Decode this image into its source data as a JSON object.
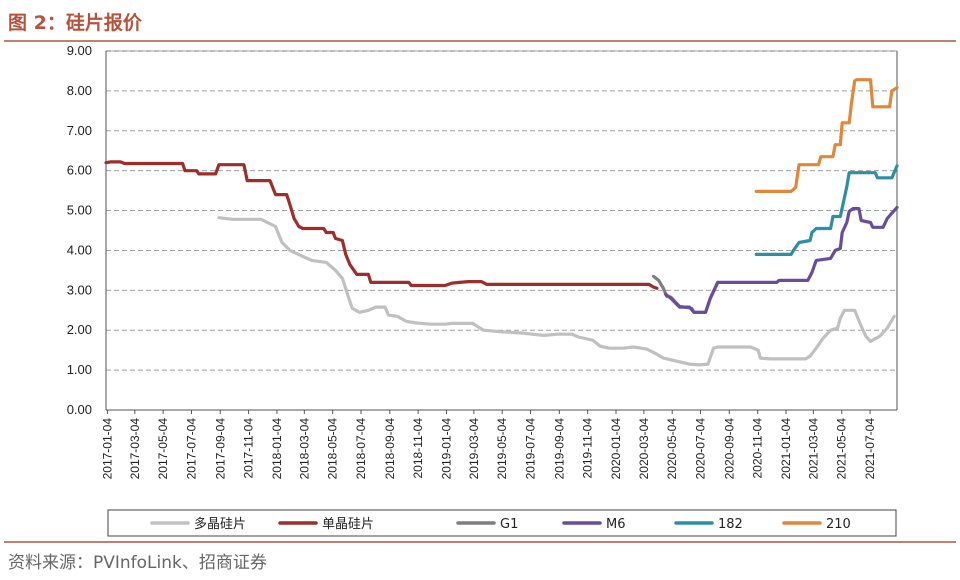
{
  "figure": {
    "title": "图 2：硅片报价",
    "source": "资料来源：PVInfoLink、招商证券"
  },
  "chart_data": {
    "type": "line",
    "title": "",
    "xlabel": "",
    "ylabel": "",
    "ylim": [
      0,
      9
    ],
    "yticks": [
      "0.00",
      "1.00",
      "2.00",
      "3.00",
      "4.00",
      "5.00",
      "6.00",
      "7.00",
      "8.00",
      "9.00"
    ],
    "xlim": [
      "2017-01-01",
      "2021-08-31"
    ],
    "xticks": [
      "2017-01-04",
      "2017-03-04",
      "2017-05-04",
      "2017-07-04",
      "2017-09-04",
      "2017-11-04",
      "2018-01-04",
      "2018-03-04",
      "2018-05-04",
      "2018-07-04",
      "2018-09-04",
      "2018-11-04",
      "2019-01-04",
      "2019-03-04",
      "2019-05-04",
      "2019-07-04",
      "2019-09-04",
      "2019-11-04",
      "2020-01-04",
      "2020-03-04",
      "2020-05-04",
      "2020-07-04",
      "2020-09-04",
      "2020-11-04",
      "2021-01-04",
      "2021-03-04",
      "2021-05-04",
      "2021-07-04"
    ],
    "grid": "horizontal dashed",
    "legend": "bottom",
    "series": [
      {
        "name": "多晶硅片",
        "color": "#c0c0c0",
        "points": [
          [
            "2017-09-01",
            4.82
          ],
          [
            "2017-10-01",
            4.78
          ],
          [
            "2017-12-01",
            4.78
          ],
          [
            "2018-01-01",
            4.6
          ],
          [
            "2018-01-15",
            4.2
          ],
          [
            "2018-02-01",
            4.0
          ],
          [
            "2018-03-01",
            3.85
          ],
          [
            "2018-03-20",
            3.75
          ],
          [
            "2018-04-20",
            3.7
          ],
          [
            "2018-05-10",
            3.5
          ],
          [
            "2018-05-25",
            3.3
          ],
          [
            "2018-06-05",
            2.9
          ],
          [
            "2018-06-15",
            2.55
          ],
          [
            "2018-07-01",
            2.45
          ],
          [
            "2018-07-20",
            2.5
          ],
          [
            "2018-08-05",
            2.58
          ],
          [
            "2018-08-25",
            2.58
          ],
          [
            "2018-09-01",
            2.38
          ],
          [
            "2018-09-20",
            2.35
          ],
          [
            "2018-10-10",
            2.22
          ],
          [
            "2018-11-01",
            2.18
          ],
          [
            "2018-12-01",
            2.15
          ],
          [
            "2019-01-01",
            2.15
          ],
          [
            "2019-01-15",
            2.17
          ],
          [
            "2019-03-01",
            2.17
          ],
          [
            "2019-03-25",
            2.0
          ],
          [
            "2019-05-01",
            1.96
          ],
          [
            "2019-06-15",
            1.93
          ],
          [
            "2019-08-01",
            1.87
          ],
          [
            "2019-09-01",
            1.9
          ],
          [
            "2019-10-01",
            1.9
          ],
          [
            "2019-10-15",
            1.83
          ],
          [
            "2019-11-15",
            1.75
          ],
          [
            "2019-12-01",
            1.6
          ],
          [
            "2019-12-20",
            1.55
          ],
          [
            "2020-01-20",
            1.55
          ],
          [
            "2020-02-10",
            1.58
          ],
          [
            "2020-03-10",
            1.53
          ],
          [
            "2020-04-01",
            1.4
          ],
          [
            "2020-04-15",
            1.3
          ],
          [
            "2020-05-15",
            1.22
          ],
          [
            "2020-06-10",
            1.15
          ],
          [
            "2020-07-01",
            1.13
          ],
          [
            "2020-07-20",
            1.15
          ],
          [
            "2020-08-01",
            1.55
          ],
          [
            "2020-08-10",
            1.58
          ],
          [
            "2020-10-20",
            1.58
          ],
          [
            "2020-11-05",
            1.5
          ],
          [
            "2020-11-10",
            1.3
          ],
          [
            "2020-12-01",
            1.28
          ],
          [
            "2021-02-15",
            1.28
          ],
          [
            "2021-02-25",
            1.35
          ],
          [
            "2021-03-10",
            1.55
          ],
          [
            "2021-03-25",
            1.8
          ],
          [
            "2021-04-10",
            2.0
          ],
          [
            "2021-04-25",
            2.05
          ],
          [
            "2021-05-01",
            2.3
          ],
          [
            "2021-05-10",
            2.5
          ],
          [
            "2021-06-01",
            2.5
          ],
          [
            "2021-06-15",
            2.1
          ],
          [
            "2021-06-25",
            1.85
          ],
          [
            "2021-07-05",
            1.72
          ],
          [
            "2021-07-25",
            1.85
          ],
          [
            "2021-08-10",
            2.05
          ],
          [
            "2021-08-25",
            2.35
          ]
        ]
      },
      {
        "name": "单晶硅片",
        "color": "#9c2e2b",
        "points": [
          [
            "2017-01-01",
            6.2
          ],
          [
            "2017-01-10",
            6.22
          ],
          [
            "2017-02-01",
            6.22
          ],
          [
            "2017-02-10",
            6.18
          ],
          [
            "2017-06-15",
            6.18
          ],
          [
            "2017-06-20",
            6.0
          ],
          [
            "2017-07-15",
            6.0
          ],
          [
            "2017-07-20",
            5.92
          ],
          [
            "2017-08-25",
            5.92
          ],
          [
            "2017-09-01",
            6.15
          ],
          [
            "2017-10-25",
            6.15
          ],
          [
            "2017-11-01",
            5.75
          ],
          [
            "2017-12-20",
            5.75
          ],
          [
            "2018-01-01",
            5.4
          ],
          [
            "2018-01-25",
            5.4
          ],
          [
            "2018-02-01",
            5.15
          ],
          [
            "2018-02-10",
            4.8
          ],
          [
            "2018-02-20",
            4.6
          ],
          [
            "2018-03-01",
            4.55
          ],
          [
            "2018-04-15",
            4.55
          ],
          [
            "2018-04-20",
            4.45
          ],
          [
            "2018-05-05",
            4.45
          ],
          [
            "2018-05-10",
            4.3
          ],
          [
            "2018-05-25",
            4.25
          ],
          [
            "2018-06-01",
            3.9
          ],
          [
            "2018-06-10",
            3.65
          ],
          [
            "2018-06-25",
            3.4
          ],
          [
            "2018-07-20",
            3.4
          ],
          [
            "2018-07-25",
            3.2
          ],
          [
            "2018-10-15",
            3.2
          ],
          [
            "2018-10-20",
            3.12
          ],
          [
            "2019-01-01",
            3.12
          ],
          [
            "2019-01-15",
            3.18
          ],
          [
            "2019-02-01",
            3.2
          ],
          [
            "2019-02-20",
            3.22
          ],
          [
            "2019-03-20",
            3.22
          ],
          [
            "2019-04-01",
            3.15
          ],
          [
            "2020-03-15",
            3.15
          ],
          [
            "2020-03-25",
            3.08
          ],
          [
            "2020-04-01",
            3.05
          ]
        ]
      },
      {
        "name": "G1",
        "color": "#7f7f7f",
        "points": [
          [
            "2020-03-25",
            3.35
          ],
          [
            "2020-04-05",
            3.25
          ],
          [
            "2020-04-15",
            3.05
          ],
          [
            "2020-04-22",
            2.85
          ],
          [
            "2020-05-01",
            2.83
          ],
          [
            "2020-05-20",
            2.6
          ],
          [
            "2020-06-15",
            2.55
          ],
          [
            "2020-06-20",
            2.45
          ],
          [
            "2020-07-15",
            2.45
          ],
          [
            "2020-07-25",
            2.8
          ],
          [
            "2020-08-10",
            3.2
          ]
        ]
      },
      {
        "name": "M6",
        "color": "#6b4c9a",
        "points": [
          [
            "2020-04-20",
            2.9
          ],
          [
            "2020-05-01",
            2.8
          ],
          [
            "2020-05-20",
            2.58
          ],
          [
            "2020-06-10",
            2.58
          ],
          [
            "2020-06-20",
            2.45
          ],
          [
            "2020-07-15",
            2.45
          ],
          [
            "2020-07-25",
            2.8
          ],
          [
            "2020-08-10",
            3.2
          ],
          [
            "2020-12-15",
            3.2
          ],
          [
            "2020-12-20",
            3.25
          ],
          [
            "2021-02-20",
            3.25
          ],
          [
            "2021-03-01",
            3.45
          ],
          [
            "2021-03-10",
            3.75
          ],
          [
            "2021-04-10",
            3.8
          ],
          [
            "2021-04-20",
            4.0
          ],
          [
            "2021-05-01",
            4.05
          ],
          [
            "2021-05-05",
            4.45
          ],
          [
            "2021-05-15",
            4.7
          ],
          [
            "2021-05-20",
            4.98
          ],
          [
            "2021-05-28",
            5.05
          ],
          [
            "2021-06-10",
            5.05
          ],
          [
            "2021-06-15",
            4.75
          ],
          [
            "2021-07-05",
            4.7
          ],
          [
            "2021-07-10",
            4.58
          ],
          [
            "2021-08-01",
            4.58
          ],
          [
            "2021-08-10",
            4.8
          ],
          [
            "2021-08-31",
            5.08
          ]
        ]
      },
      {
        "name": "182",
        "color": "#2e8fa3",
        "points": [
          [
            "2020-11-01",
            3.9
          ],
          [
            "2021-01-15",
            3.9
          ],
          [
            "2021-01-20",
            4.0
          ],
          [
            "2021-02-01",
            4.2
          ],
          [
            "2021-02-25",
            4.25
          ],
          [
            "2021-03-01",
            4.45
          ],
          [
            "2021-03-10",
            4.55
          ],
          [
            "2021-04-10",
            4.55
          ],
          [
            "2021-04-15",
            4.85
          ],
          [
            "2021-05-01",
            4.85
          ],
          [
            "2021-05-15",
            5.6
          ],
          [
            "2021-05-20",
            5.95
          ],
          [
            "2021-07-15",
            5.95
          ],
          [
            "2021-07-20",
            5.82
          ],
          [
            "2021-08-20",
            5.82
          ],
          [
            "2021-08-31",
            6.12
          ]
        ]
      },
      {
        "name": "210",
        "color": "#e0873a",
        "points": [
          [
            "2020-11-01",
            5.48
          ],
          [
            "2021-01-15",
            5.48
          ],
          [
            "2021-01-25",
            5.58
          ],
          [
            "2021-02-01",
            6.15
          ],
          [
            "2021-03-15",
            6.15
          ],
          [
            "2021-03-20",
            6.35
          ],
          [
            "2021-04-15",
            6.35
          ],
          [
            "2021-04-20",
            6.65
          ],
          [
            "2021-05-01",
            6.65
          ],
          [
            "2021-05-05",
            7.2
          ],
          [
            "2021-05-20",
            7.2
          ],
          [
            "2021-05-25",
            7.7
          ],
          [
            "2021-06-01",
            8.25
          ],
          [
            "2021-06-05",
            8.28
          ],
          [
            "2021-07-05",
            8.28
          ],
          [
            "2021-07-10",
            7.6
          ],
          [
            "2021-08-15",
            7.6
          ],
          [
            "2021-08-20",
            8.0
          ],
          [
            "2021-08-31",
            8.08
          ]
        ]
      }
    ]
  }
}
